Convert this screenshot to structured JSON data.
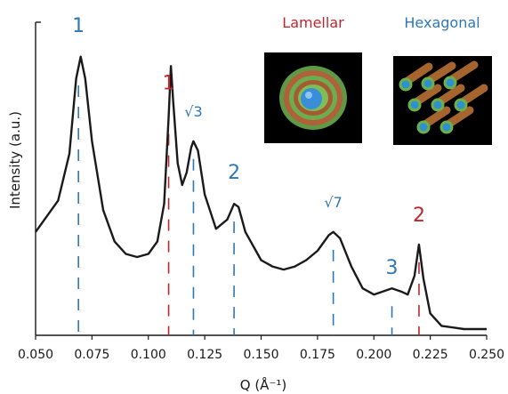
{
  "chart_data": {
    "type": "line",
    "title": "",
    "xlabel": "Q (Å⁻¹)",
    "ylabel": "Intensity (a.u.)",
    "xlim": [
      0.05,
      0.25
    ],
    "ylim": [
      0,
      1
    ],
    "xticks": [
      "0.050",
      "0.075",
      "0.100",
      "0.125",
      "0.150",
      "0.175",
      "0.200",
      "0.225",
      "0.250"
    ],
    "grid": false,
    "colors": {
      "lamellar": "#c0272d",
      "hexagonal": "#2f77b6",
      "curve": "#1a1a1a"
    },
    "series": [
      {
        "values": [
          [
            0.05,
            0.33
          ],
          [
            0.06,
            0.43
          ],
          [
            0.065,
            0.58
          ],
          [
            0.068,
            0.82
          ],
          [
            0.07,
            0.89
          ],
          [
            0.072,
            0.82
          ],
          [
            0.075,
            0.62
          ],
          [
            0.08,
            0.4
          ],
          [
            0.085,
            0.3
          ],
          [
            0.09,
            0.26
          ],
          [
            0.095,
            0.25
          ],
          [
            0.1,
            0.26
          ],
          [
            0.104,
            0.3
          ],
          [
            0.107,
            0.42
          ],
          [
            0.109,
            0.7
          ],
          [
            0.11,
            0.86
          ],
          [
            0.111,
            0.75
          ],
          [
            0.113,
            0.55
          ],
          [
            0.115,
            0.48
          ],
          [
            0.117,
            0.52
          ],
          [
            0.119,
            0.6
          ],
          [
            0.12,
            0.62
          ],
          [
            0.122,
            0.59
          ],
          [
            0.125,
            0.45
          ],
          [
            0.13,
            0.34
          ],
          [
            0.135,
            0.37
          ],
          [
            0.138,
            0.42
          ],
          [
            0.14,
            0.41
          ],
          [
            0.143,
            0.33
          ],
          [
            0.15,
            0.24
          ],
          [
            0.155,
            0.22
          ],
          [
            0.16,
            0.21
          ],
          [
            0.165,
            0.22
          ],
          [
            0.17,
            0.24
          ],
          [
            0.175,
            0.27
          ],
          [
            0.18,
            0.32
          ],
          [
            0.182,
            0.33
          ],
          [
            0.185,
            0.31
          ],
          [
            0.19,
            0.22
          ],
          [
            0.195,
            0.15
          ],
          [
            0.2,
            0.13
          ],
          [
            0.204,
            0.14
          ],
          [
            0.208,
            0.15
          ],
          [
            0.212,
            0.14
          ],
          [
            0.215,
            0.13
          ],
          [
            0.218,
            0.19
          ],
          [
            0.22,
            0.29
          ],
          [
            0.222,
            0.18
          ],
          [
            0.225,
            0.07
          ],
          [
            0.23,
            0.03
          ],
          [
            0.24,
            0.02
          ],
          [
            0.25,
            0.02
          ]
        ]
      }
    ],
    "peak_markers": [
      {
        "phase": "hexagonal",
        "label": "1",
        "q": 0.069
      },
      {
        "phase": "lamellar",
        "label": "1",
        "q": 0.109
      },
      {
        "phase": "hexagonal",
        "label": "√3",
        "q": 0.12
      },
      {
        "phase": "hexagonal",
        "label": "2",
        "q": 0.138
      },
      {
        "phase": "hexagonal",
        "label": "√7",
        "q": 0.182
      },
      {
        "phase": "hexagonal",
        "label": "3",
        "q": 0.208
      },
      {
        "phase": "lamellar",
        "label": "2",
        "q": 0.22
      }
    ],
    "insets": [
      {
        "title": "Lamellar",
        "phase": "lamellar",
        "icon": "lamellar-vesicle-icon"
      },
      {
        "title": "Hexagonal",
        "phase": "hexagonal",
        "icon": "hexagonal-cylinders-icon"
      }
    ]
  }
}
